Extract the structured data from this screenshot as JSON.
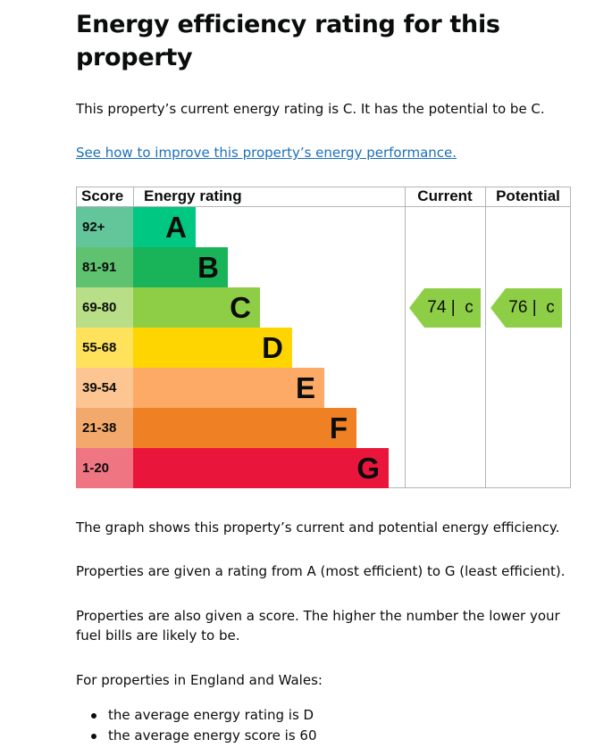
{
  "heading": "Energy efficiency rating for this property",
  "current_rating_text": "This property’s current energy rating is C. It has the potential to be C.",
  "improve_link": "See how to improve this property’s energy performance.",
  "chart_data": {
    "type": "bar",
    "headers": {
      "score": "Score",
      "rating": "Energy rating",
      "current": "Current",
      "potential": "Potential"
    },
    "bands": [
      {
        "score": "92+",
        "letter": "A",
        "score_color": "#63c69b",
        "color": "#00c781"
      },
      {
        "score": "81-91",
        "letter": "B",
        "score_color": "#5fc271",
        "color": "#19b459"
      },
      {
        "score": "69-80",
        "letter": "C",
        "score_color": "#b8df87",
        "color": "#8dce46"
      },
      {
        "score": "55-68",
        "letter": "D",
        "score_color": "#ffe25c",
        "color": "#ffd500"
      },
      {
        "score": "39-54",
        "letter": "E",
        "score_color": "#fcc591",
        "color": "#fcaa65"
      },
      {
        "score": "21-38",
        "letter": "F",
        "score_color": "#f3a96b",
        "color": "#ef8023"
      },
      {
        "score": "1-20",
        "letter": "G",
        "score_color": "#f07583",
        "color": "#e9153b"
      }
    ],
    "current": {
      "score": 74,
      "letter": "c",
      "label": "74 |  c",
      "band": "C",
      "color": "#8dce46"
    },
    "potential": {
      "score": 76,
      "letter": "c",
      "label": "76 |  c",
      "band": "C",
      "color": "#8dce46"
    }
  },
  "explanation": {
    "graph": "The graph shows this property’s current and potential energy efficiency.",
    "ratings": "Properties are given a rating from A (most efficient) to G (least efficient).",
    "scores": "Properties are also given a score. The higher the number the lower your fuel bills are likely to be.",
    "region_intro": "For properties in England and Wales:",
    "bullets": [
      "the average energy rating is D",
      "the average energy score is 60"
    ]
  }
}
